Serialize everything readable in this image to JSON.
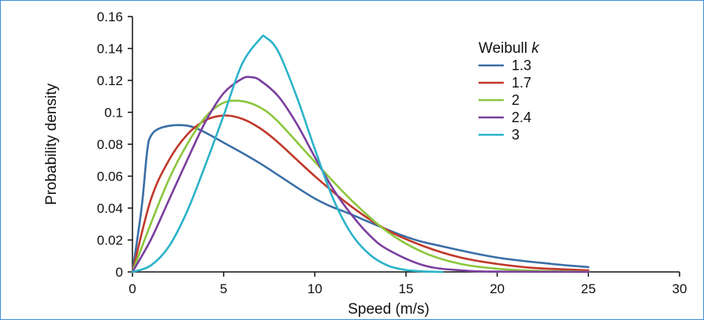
{
  "chart_data": {
    "type": "line",
    "title": "",
    "xlabel": "Speed (m/s)",
    "ylabel": "Probability density",
    "xlim": [
      0,
      30
    ],
    "ylim": [
      0,
      0.16
    ],
    "x_ticks": [
      "0",
      "5",
      "10",
      "15",
      "20",
      "25",
      "30"
    ],
    "y_ticks": [
      "0",
      "0.02",
      "0.04",
      "0.06",
      "0.08",
      "0.1",
      "0.12",
      "0.14",
      "0.16"
    ],
    "x_range_plotted": [
      0,
      25
    ],
    "legend": {
      "title": "Weibull",
      "title_italic_part": "k",
      "placement": "top-right"
    },
    "series": [
      {
        "name": "1.3",
        "color": "#3a6fa6",
        "points": [
          [
            0,
            0
          ],
          [
            0.5,
            0.04
          ],
          [
            0.8,
            0.075
          ],
          [
            1.0,
            0.085
          ],
          [
            1.5,
            0.09
          ],
          [
            2.5,
            0.092
          ],
          [
            3.5,
            0.09
          ],
          [
            5,
            0.081
          ],
          [
            7,
            0.068
          ],
          [
            10,
            0.046
          ],
          [
            12,
            0.036
          ],
          [
            15,
            0.022
          ],
          [
            17,
            0.016
          ],
          [
            20,
            0.009
          ],
          [
            23,
            0.005
          ],
          [
            25,
            0.003
          ]
        ]
      },
      {
        "name": "1.7",
        "color": "#c0392b",
        "points": [
          [
            0,
            0
          ],
          [
            1,
            0.045
          ],
          [
            2,
            0.07
          ],
          [
            3,
            0.086
          ],
          [
            4,
            0.095
          ],
          [
            5,
            0.098
          ],
          [
            6,
            0.096
          ],
          [
            7,
            0.09
          ],
          [
            8,
            0.081
          ],
          [
            10,
            0.06
          ],
          [
            12,
            0.041
          ],
          [
            14,
            0.026
          ],
          [
            16,
            0.016
          ],
          [
            18,
            0.009
          ],
          [
            20,
            0.005
          ],
          [
            22,
            0.0025
          ],
          [
            25,
            0.001
          ]
        ]
      },
      {
        "name": "2",
        "color": "#8cc63e",
        "points": [
          [
            0,
            0
          ],
          [
            1,
            0.03
          ],
          [
            2,
            0.058
          ],
          [
            3,
            0.08
          ],
          [
            4,
            0.097
          ],
          [
            5,
            0.106
          ],
          [
            6,
            0.107
          ],
          [
            7,
            0.103
          ],
          [
            8,
            0.094
          ],
          [
            10,
            0.069
          ],
          [
            12,
            0.045
          ],
          [
            14,
            0.025
          ],
          [
            16,
            0.012
          ],
          [
            18,
            0.005
          ],
          [
            20,
            0.002
          ],
          [
            22,
            0.0007
          ],
          [
            25,
            0.0001
          ]
        ]
      },
      {
        "name": "2.4",
        "color": "#7b3f9e",
        "points": [
          [
            0,
            0
          ],
          [
            1,
            0.02
          ],
          [
            2,
            0.045
          ],
          [
            3,
            0.07
          ],
          [
            4,
            0.094
          ],
          [
            5,
            0.112
          ],
          [
            6,
            0.121
          ],
          [
            6.5,
            0.122
          ],
          [
            7,
            0.12
          ],
          [
            8,
            0.11
          ],
          [
            9,
            0.093
          ],
          [
            10,
            0.072
          ],
          [
            11,
            0.052
          ],
          [
            12,
            0.036
          ],
          [
            13,
            0.023
          ],
          [
            14,
            0.014
          ],
          [
            16,
            0.004
          ],
          [
            18,
            0.001
          ],
          [
            20,
            0.0002
          ],
          [
            25,
            0
          ]
        ]
      },
      {
        "name": "3",
        "color": "#2bb3c9",
        "points": [
          [
            0,
            0
          ],
          [
            1,
            0.004
          ],
          [
            2,
            0.016
          ],
          [
            3,
            0.038
          ],
          [
            4,
            0.067
          ],
          [
            5,
            0.098
          ],
          [
            6,
            0.13
          ],
          [
            7,
            0.146
          ],
          [
            7.3,
            0.147
          ],
          [
            8,
            0.138
          ],
          [
            9,
            0.11
          ],
          [
            10,
            0.077
          ],
          [
            11,
            0.046
          ],
          [
            12,
            0.024
          ],
          [
            13,
            0.011
          ],
          [
            14,
            0.004
          ],
          [
            15,
            0.0012
          ],
          [
            16,
            0.0003
          ],
          [
            17,
            0
          ]
        ]
      }
    ]
  }
}
